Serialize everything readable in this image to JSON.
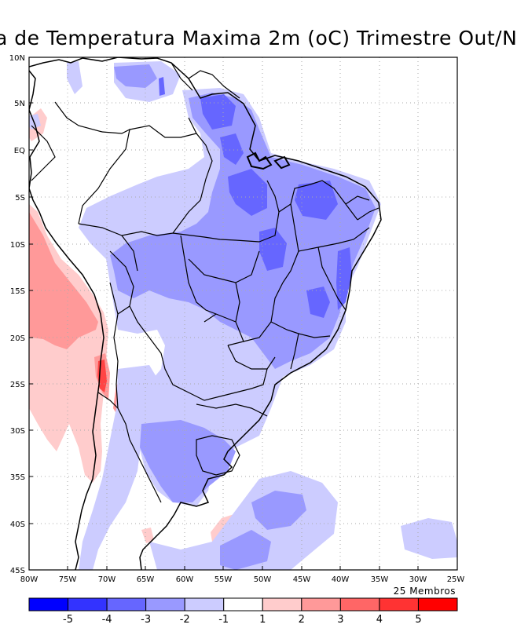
{
  "title": "a de Temperatura Maxima 2m (oC) Trimestre Out/N",
  "members_label": "25 Membros",
  "lat_labels": [
    "10N",
    "5N",
    "EQ",
    "5S",
    "10S",
    "15S",
    "20S",
    "25S",
    "30S",
    "35S",
    "40S",
    "45S"
  ],
  "lon_labels": [
    "80W",
    "75W",
    "70W",
    "65W",
    "60W",
    "55W",
    "50W",
    "45W",
    "40W",
    "35W",
    "30W",
    "25W"
  ],
  "extent": {
    "lon_min": -80,
    "lon_max": -25,
    "lat_min": -45,
    "lat_max": 10
  },
  "colorbar": {
    "labels": [
      "-5",
      "-4",
      "-3",
      "-2",
      "-1",
      "1",
      "2",
      "3",
      "4",
      "5"
    ],
    "colors": [
      "#0000ff",
      "#3333ff",
      "#6666ff",
      "#9999ff",
      "#ccccff",
      "#ffffff",
      "#ffcccc",
      "#ff9999",
      "#ff6666",
      "#ff3333",
      "#ff0000"
    ]
  },
  "colors": {
    "cold1": "#ccccff",
    "cold2": "#9999ff",
    "cold3": "#6666ff",
    "warm1": "#ffcccc",
    "warm2": "#ff9999",
    "warm3": "#ff5555",
    "warm4": "#ff2222",
    "grid": "#999999"
  }
}
